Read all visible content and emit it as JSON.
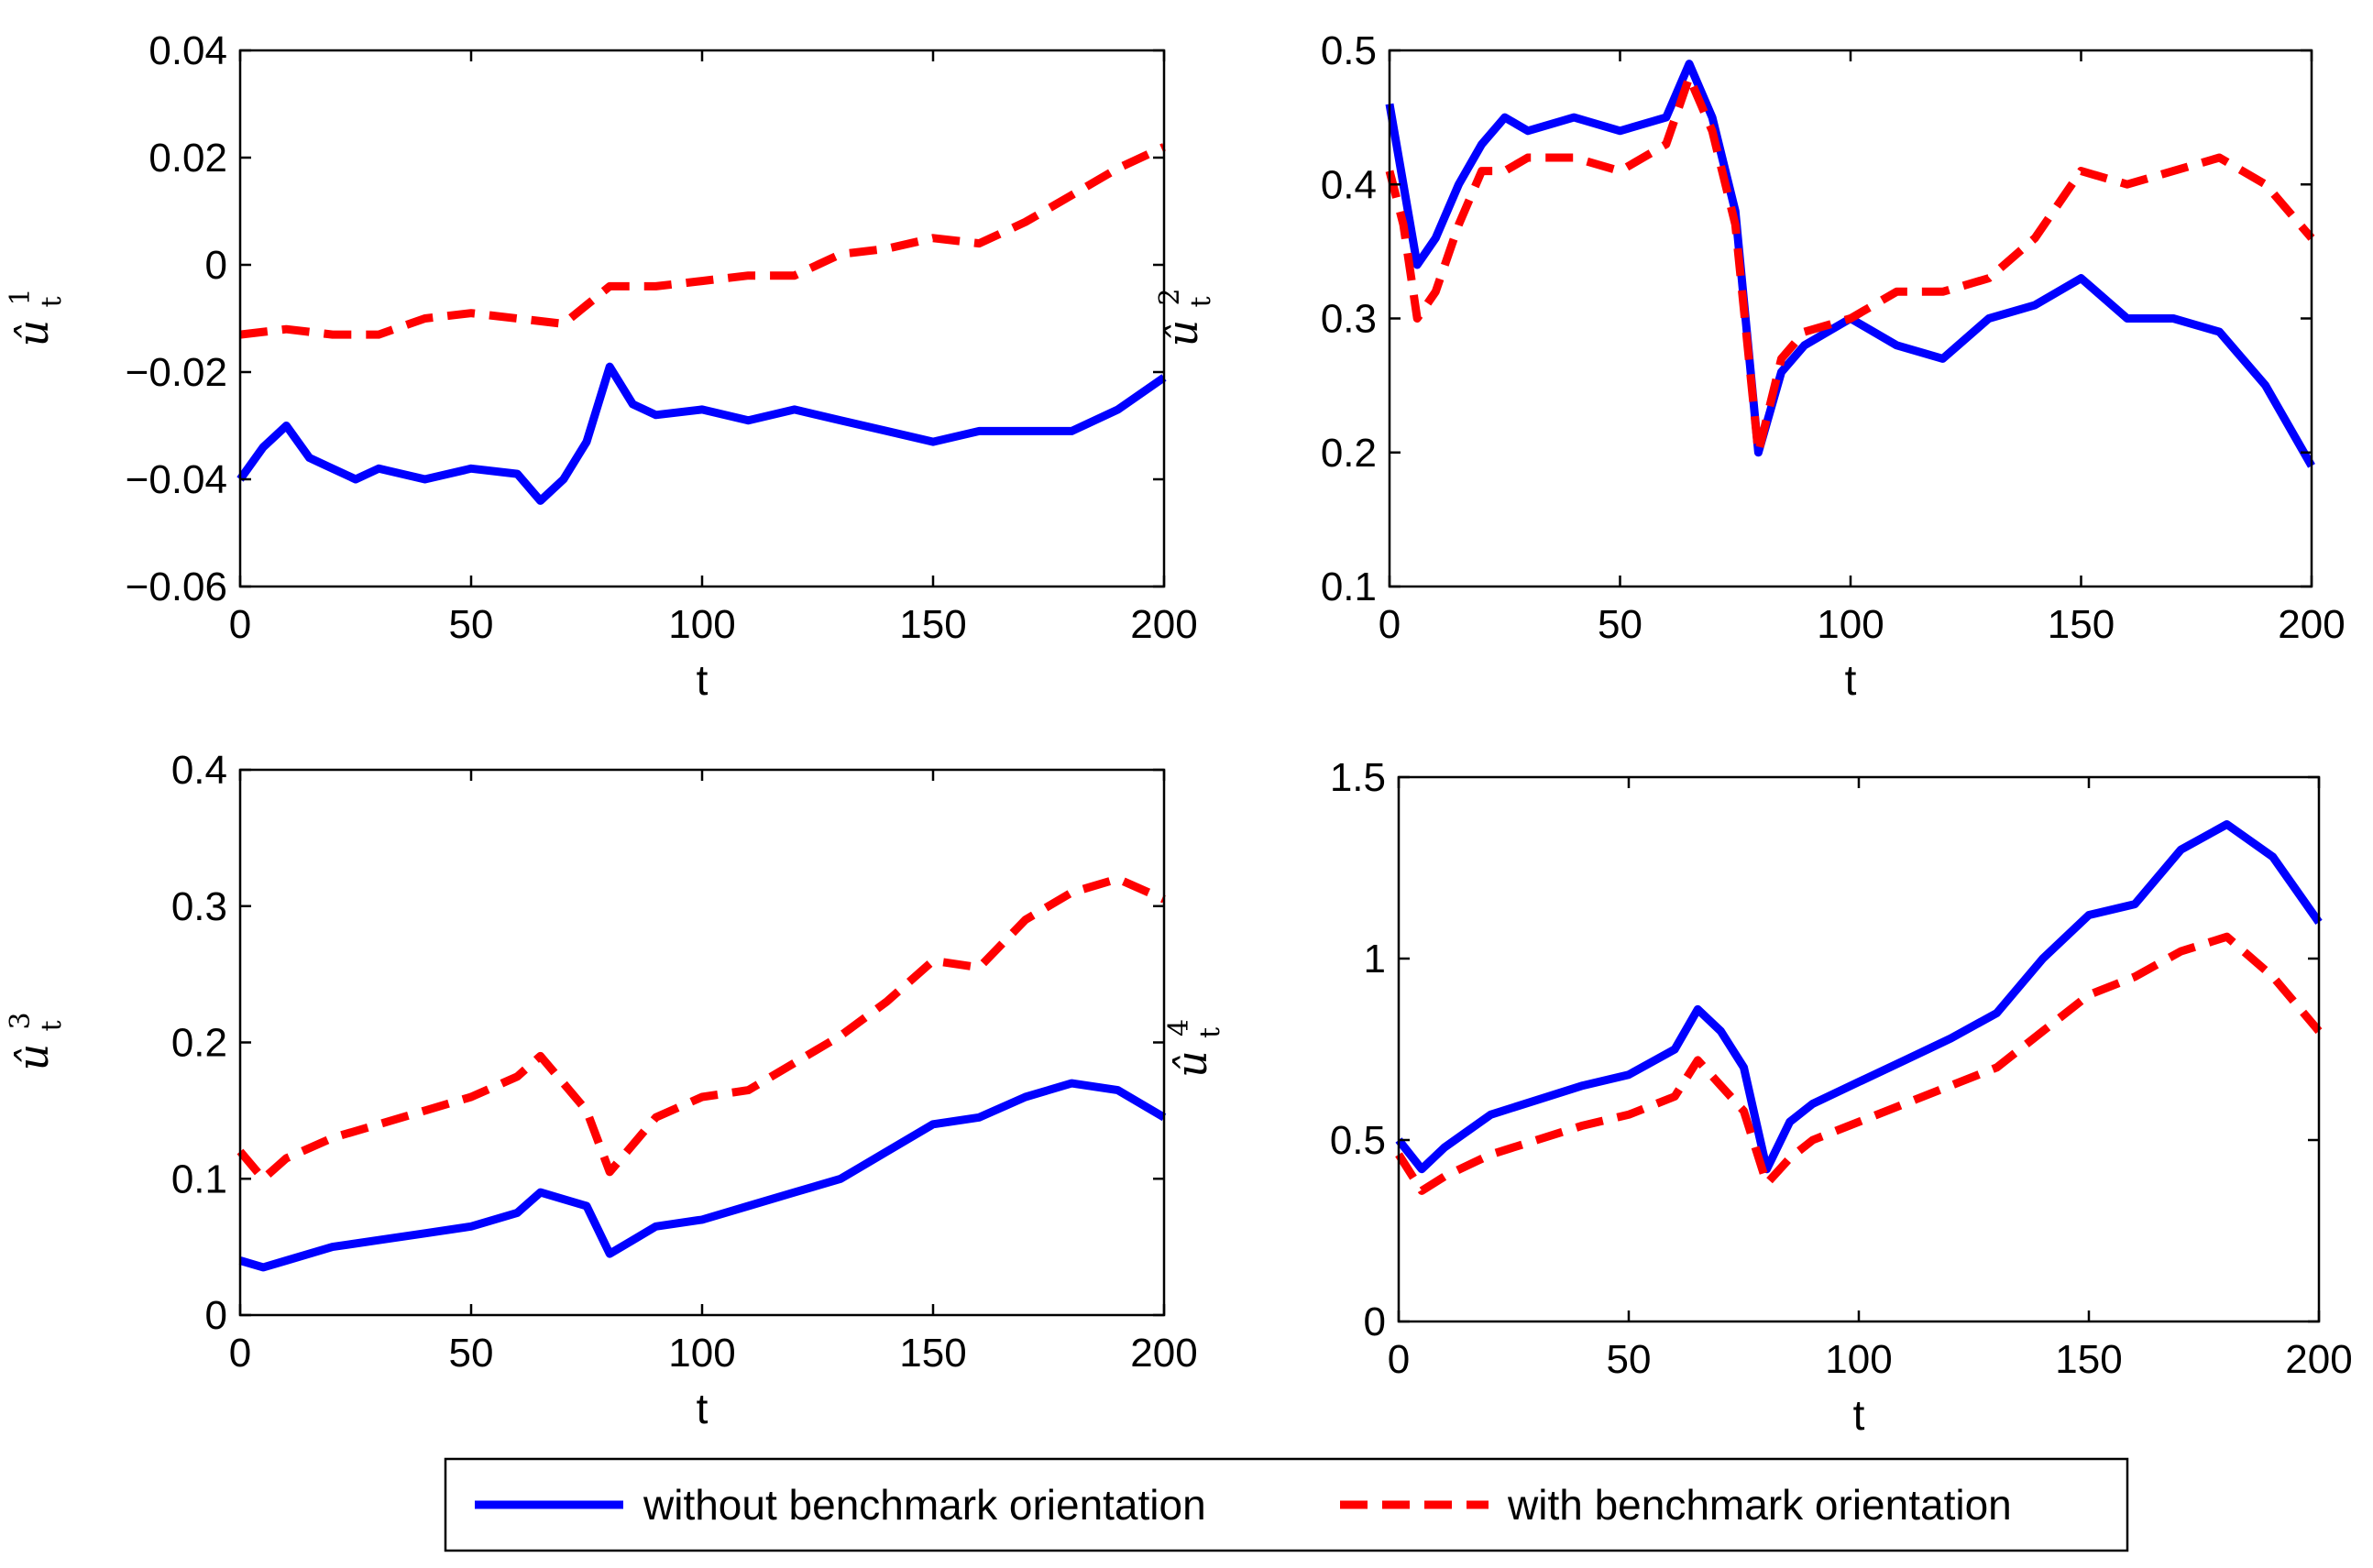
{
  "colors": {
    "series_without": "#0000ff",
    "series_with": "#ff0000",
    "axis": "#000000"
  },
  "legend": {
    "entries": [
      {
        "label": "without benchmark orientation",
        "style": "solid",
        "color": "#0000ff"
      },
      {
        "label": "with benchmark orientation",
        "style": "dashed",
        "color": "#ff0000"
      }
    ],
    "placement": "bottom-center"
  },
  "chart_data": [
    {
      "type": "line",
      "ylabel_base": "û",
      "ylabel_sup": "1",
      "ylabel_sub": "t",
      "xlabel": "t",
      "xlim": [
        0,
        200
      ],
      "ylim": [
        -0.06,
        0.04
      ],
      "xticks": [
        0,
        50,
        100,
        150,
        200
      ],
      "xtick_labels": [
        "0",
        "50",
        "100",
        "150",
        "200"
      ],
      "yticks": [
        -0.06,
        -0.04,
        -0.02,
        0,
        0.02,
        0.04
      ],
      "ytick_labels": [
        "−0.06",
        "−0.04",
        "−0.02",
        "0",
        "0.02",
        "0.04"
      ],
      "series": [
        {
          "name": "without benchmark orientation",
          "x": [
            0,
            5,
            10,
            15,
            20,
            25,
            30,
            40,
            50,
            60,
            65,
            70,
            75,
            80,
            85,
            90,
            100,
            110,
            120,
            130,
            140,
            150,
            160,
            170,
            180,
            190,
            200
          ],
          "y": [
            -0.04,
            -0.034,
            -0.03,
            -0.036,
            -0.038,
            -0.04,
            -0.038,
            -0.04,
            -0.038,
            -0.039,
            -0.044,
            -0.04,
            -0.033,
            -0.019,
            -0.026,
            -0.028,
            -0.027,
            -0.029,
            -0.027,
            -0.029,
            -0.031,
            -0.033,
            -0.031,
            -0.031,
            -0.031,
            -0.027,
            -0.021
          ]
        },
        {
          "name": "with benchmark orientation",
          "x": [
            0,
            10,
            20,
            30,
            40,
            50,
            60,
            70,
            80,
            90,
            100,
            110,
            120,
            130,
            140,
            150,
            160,
            170,
            180,
            190,
            200
          ],
          "y": [
            -0.013,
            -0.012,
            -0.013,
            -0.013,
            -0.01,
            -0.009,
            -0.01,
            -0.011,
            -0.004,
            -0.004,
            -0.003,
            -0.002,
            -0.002,
            0.002,
            0.003,
            0.005,
            0.004,
            0.008,
            0.013,
            0.018,
            0.022
          ]
        }
      ]
    },
    {
      "type": "line",
      "ylabel_base": "û",
      "ylabel_sup": "2",
      "ylabel_sub": "t",
      "xlabel": "t",
      "xlim": [
        0,
        200
      ],
      "ylim": [
        0.1,
        0.5
      ],
      "xticks": [
        0,
        50,
        100,
        150,
        200
      ],
      "xtick_labels": [
        "0",
        "50",
        "100",
        "150",
        "200"
      ],
      "yticks": [
        0.1,
        0.2,
        0.3,
        0.4,
        0.5
      ],
      "ytick_labels": [
        "0.1",
        "0.2",
        "0.3",
        "0.4",
        "0.5"
      ],
      "series": [
        {
          "name": "without benchmark orientation",
          "x": [
            0,
            3,
            6,
            10,
            15,
            20,
            25,
            30,
            40,
            50,
            60,
            65,
            70,
            75,
            80,
            85,
            90,
            100,
            110,
            120,
            130,
            140,
            150,
            160,
            170,
            180,
            190,
            200
          ],
          "y": [
            0.46,
            0.4,
            0.34,
            0.36,
            0.4,
            0.43,
            0.45,
            0.44,
            0.45,
            0.44,
            0.45,
            0.49,
            0.45,
            0.38,
            0.2,
            0.26,
            0.28,
            0.3,
            0.28,
            0.27,
            0.3,
            0.31,
            0.33,
            0.3,
            0.3,
            0.29,
            0.25,
            0.19
          ]
        },
        {
          "name": "with benchmark orientation",
          "x": [
            0,
            3,
            6,
            10,
            15,
            20,
            25,
            30,
            40,
            50,
            60,
            65,
            70,
            75,
            80,
            85,
            90,
            100,
            110,
            120,
            130,
            140,
            150,
            160,
            170,
            180,
            190,
            200
          ],
          "y": [
            0.41,
            0.37,
            0.3,
            0.32,
            0.37,
            0.41,
            0.41,
            0.42,
            0.42,
            0.41,
            0.43,
            0.48,
            0.44,
            0.37,
            0.2,
            0.27,
            0.29,
            0.3,
            0.32,
            0.32,
            0.33,
            0.36,
            0.41,
            0.4,
            0.41,
            0.42,
            0.4,
            0.36
          ]
        }
      ]
    },
    {
      "type": "line",
      "ylabel_base": "û",
      "ylabel_sup": "3",
      "ylabel_sub": "t",
      "xlabel": "t",
      "xlim": [
        0,
        200
      ],
      "ylim": [
        0,
        0.4
      ],
      "xticks": [
        0,
        50,
        100,
        150,
        200
      ],
      "xtick_labels": [
        "0",
        "50",
        "100",
        "150",
        "200"
      ],
      "yticks": [
        0,
        0.1,
        0.2,
        0.3,
        0.4
      ],
      "ytick_labels": [
        "0",
        "0.1",
        "0.2",
        "0.3",
        "0.4"
      ],
      "series": [
        {
          "name": "without benchmark orientation",
          "x": [
            0,
            5,
            10,
            20,
            30,
            40,
            50,
            60,
            65,
            70,
            75,
            80,
            85,
            90,
            100,
            110,
            120,
            130,
            140,
            150,
            160,
            170,
            180,
            190,
            200
          ],
          "y": [
            0.04,
            0.035,
            0.04,
            0.05,
            0.055,
            0.06,
            0.065,
            0.075,
            0.09,
            0.085,
            0.08,
            0.045,
            0.055,
            0.065,
            0.07,
            0.08,
            0.09,
            0.1,
            0.12,
            0.14,
            0.145,
            0.16,
            0.17,
            0.165,
            0.145
          ]
        },
        {
          "name": "with benchmark orientation",
          "x": [
            0,
            5,
            10,
            20,
            30,
            40,
            50,
            60,
            65,
            70,
            75,
            80,
            85,
            90,
            100,
            110,
            120,
            130,
            140,
            150,
            160,
            170,
            180,
            190,
            200
          ],
          "y": [
            0.12,
            0.1,
            0.115,
            0.13,
            0.14,
            0.15,
            0.16,
            0.175,
            0.19,
            0.17,
            0.15,
            0.105,
            0.125,
            0.145,
            0.16,
            0.165,
            0.185,
            0.205,
            0.23,
            0.26,
            0.255,
            0.29,
            0.31,
            0.32,
            0.305
          ]
        }
      ]
    },
    {
      "type": "line",
      "ylabel_base": "û",
      "ylabel_sup": "4",
      "ylabel_sub": "t",
      "xlabel": "t",
      "xlim": [
        0,
        200
      ],
      "ylim": [
        0,
        1.5
      ],
      "xticks": [
        0,
        50,
        100,
        150,
        200
      ],
      "xtick_labels": [
        "0",
        "50",
        "100",
        "150",
        "200"
      ],
      "yticks": [
        0,
        0.5,
        1,
        1.5
      ],
      "ytick_labels": [
        "0",
        "0.5",
        "1",
        "1.5"
      ],
      "series": [
        {
          "name": "without benchmark orientation",
          "x": [
            0,
            5,
            10,
            20,
            30,
            40,
            50,
            60,
            65,
            70,
            75,
            80,
            85,
            90,
            100,
            110,
            120,
            130,
            140,
            150,
            160,
            170,
            180,
            190,
            200
          ],
          "y": [
            0.5,
            0.42,
            0.48,
            0.57,
            0.61,
            0.65,
            0.68,
            0.75,
            0.86,
            0.8,
            0.7,
            0.42,
            0.55,
            0.6,
            0.66,
            0.72,
            0.78,
            0.85,
            1.0,
            1.12,
            1.15,
            1.3,
            1.37,
            1.28,
            1.1
          ]
        },
        {
          "name": "with benchmark orientation",
          "x": [
            0,
            5,
            10,
            20,
            30,
            40,
            50,
            60,
            65,
            70,
            75,
            80,
            85,
            90,
            100,
            110,
            120,
            130,
            140,
            150,
            160,
            170,
            180,
            190,
            200
          ],
          "y": [
            0.46,
            0.36,
            0.4,
            0.46,
            0.5,
            0.54,
            0.57,
            0.62,
            0.72,
            0.65,
            0.58,
            0.38,
            0.45,
            0.5,
            0.55,
            0.6,
            0.65,
            0.7,
            0.8,
            0.9,
            0.95,
            1.02,
            1.06,
            0.95,
            0.8
          ]
        }
      ]
    }
  ]
}
